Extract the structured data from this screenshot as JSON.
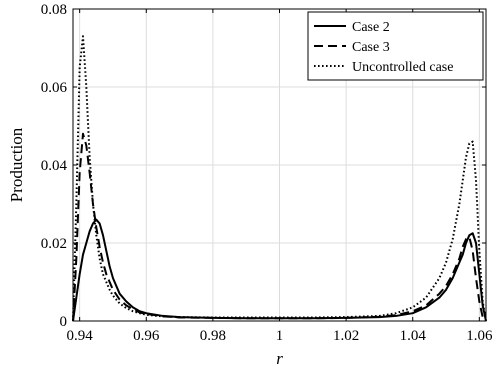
{
  "chart_data": {
    "type": "line",
    "title": "",
    "xlabel": "r",
    "ylabel": "Production",
    "xlim": [
      0.938,
      1.062
    ],
    "ylim": [
      0,
      0.08
    ],
    "x_ticks": [
      0.94,
      0.96,
      0.98,
      1,
      1.02,
      1.04,
      1.06
    ],
    "x_tick_labels": [
      "0.94",
      "0.96",
      "0.98",
      "1",
      "1.02",
      "1.04",
      "1.06"
    ],
    "y_ticks": [
      0,
      0.02,
      0.04,
      0.06,
      0.08
    ],
    "y_tick_labels": [
      "0",
      "0.02",
      "0.04",
      "0.06",
      "0.08"
    ],
    "grid": true,
    "legend_position": "top-right",
    "series": [
      {
        "name": "Case 2",
        "style": "solid",
        "color": "#000000",
        "x": [
          0.938,
          0.939,
          0.94,
          0.941,
          0.942,
          0.943,
          0.944,
          0.945,
          0.946,
          0.947,
          0.948,
          0.949,
          0.95,
          0.952,
          0.954,
          0.956,
          0.958,
          0.96,
          0.965,
          0.97,
          0.98,
          0.99,
          1.0,
          1.01,
          1.02,
          1.03,
          1.035,
          1.04,
          1.044,
          1.048,
          1.05,
          1.052,
          1.054,
          1.055,
          1.056,
          1.057,
          1.058,
          1.059,
          1.06,
          1.061,
          1.062
        ],
        "y": [
          0,
          0.006,
          0.012,
          0.017,
          0.02,
          0.023,
          0.025,
          0.026,
          0.025,
          0.022,
          0.018,
          0.014,
          0.011,
          0.007,
          0.005,
          0.0035,
          0.0025,
          0.002,
          0.0013,
          0.001,
          0.0008,
          0.0007,
          0.0007,
          0.0007,
          0.0008,
          0.001,
          0.0013,
          0.002,
          0.0035,
          0.006,
          0.008,
          0.011,
          0.015,
          0.017,
          0.02,
          0.022,
          0.0225,
          0.02,
          0.012,
          0.004,
          0
        ]
      },
      {
        "name": "Case 3",
        "style": "dashed",
        "color": "#000000",
        "x": [
          0.938,
          0.939,
          0.94,
          0.941,
          0.942,
          0.943,
          0.944,
          0.945,
          0.946,
          0.947,
          0.948,
          0.949,
          0.95,
          0.952,
          0.954,
          0.956,
          0.958,
          0.96,
          0.965,
          0.97,
          0.98,
          0.99,
          1.0,
          1.01,
          1.02,
          1.03,
          1.035,
          1.04,
          1.044,
          1.048,
          1.05,
          1.052,
          1.054,
          1.055,
          1.056,
          1.057,
          1.058,
          1.059,
          1.06,
          1.061,
          1.062
        ],
        "y": [
          0,
          0.016,
          0.038,
          0.048,
          0.045,
          0.038,
          0.03,
          0.024,
          0.019,
          0.015,
          0.012,
          0.01,
          0.008,
          0.0055,
          0.004,
          0.003,
          0.0022,
          0.0018,
          0.0012,
          0.0009,
          0.0008,
          0.0007,
          0.0007,
          0.0007,
          0.0008,
          0.0011,
          0.0015,
          0.0025,
          0.004,
          0.007,
          0.009,
          0.012,
          0.016,
          0.019,
          0.021,
          0.0215,
          0.018,
          0.011,
          0.005,
          0.001,
          0
        ]
      },
      {
        "name": "Uncontrolled case",
        "style": "dotted",
        "color": "#000000",
        "x": [
          0.938,
          0.939,
          0.94,
          0.941,
          0.942,
          0.943,
          0.944,
          0.945,
          0.946,
          0.947,
          0.948,
          0.949,
          0.95,
          0.952,
          0.954,
          0.956,
          0.958,
          0.96,
          0.965,
          0.97,
          0.98,
          0.99,
          1.0,
          1.01,
          1.02,
          1.03,
          1.035,
          1.04,
          1.044,
          1.048,
          1.05,
          1.052,
          1.054,
          1.055,
          1.056,
          1.057,
          1.058,
          1.059,
          1.06,
          1.061,
          1.062
        ],
        "y": [
          0,
          0.03,
          0.065,
          0.073,
          0.06,
          0.042,
          0.03,
          0.022,
          0.016,
          0.012,
          0.01,
          0.008,
          0.0065,
          0.0045,
          0.0033,
          0.0025,
          0.002,
          0.0016,
          0.0012,
          0.001,
          0.0009,
          0.0009,
          0.0009,
          0.0009,
          0.001,
          0.0013,
          0.002,
          0.0035,
          0.006,
          0.011,
          0.015,
          0.021,
          0.03,
          0.036,
          0.042,
          0.0455,
          0.046,
          0.036,
          0.018,
          0.005,
          0
        ]
      }
    ]
  }
}
